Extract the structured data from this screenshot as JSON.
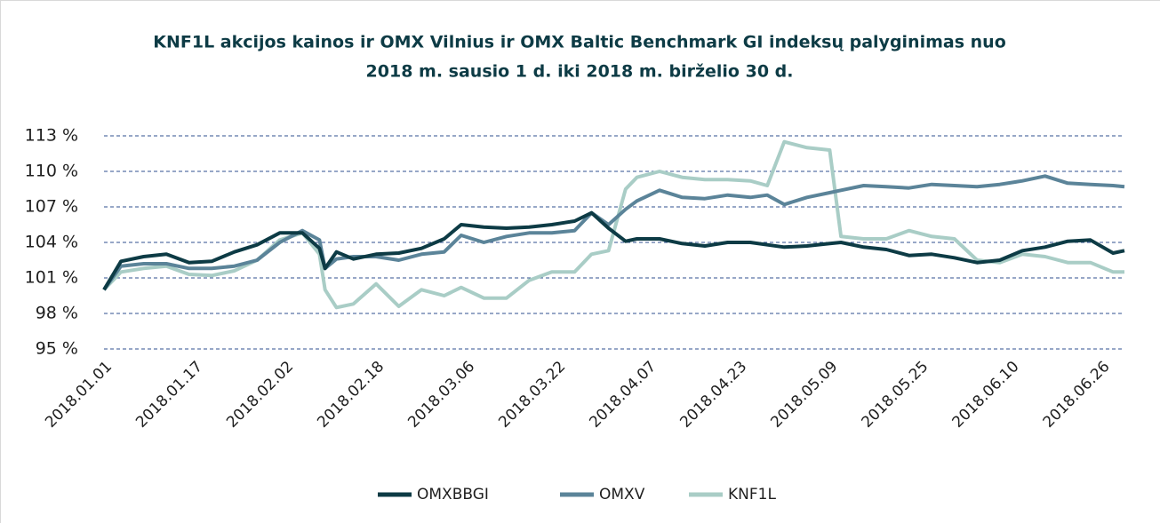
{
  "chart_data": {
    "type": "line",
    "title": [
      "KNF1L akcijos kainos ir OMX Vilnius ir OMX Baltic Benchmark GI indeksų palyginimas nuo",
      "2018 m. sausio 1 d. iki 2018 m. birželio 30 d."
    ],
    "x": [
      "2018.01.01",
      "2018.01.04",
      "2018.01.08",
      "2018.01.12",
      "2018.01.16",
      "2018.01.20",
      "2018.01.24",
      "2018.01.28",
      "2018.02.01",
      "2018.02.05",
      "2018.02.08",
      "2018.02.09",
      "2018.02.11",
      "2018.02.14",
      "2018.02.18",
      "2018.02.22",
      "2018.02.26",
      "2018.03.02",
      "2018.03.05",
      "2018.03.09",
      "2018.03.13",
      "2018.03.17",
      "2018.03.21",
      "2018.03.25",
      "2018.03.28",
      "2018.03.31",
      "2018.04.03",
      "2018.04.05",
      "2018.04.09",
      "2018.04.13",
      "2018.04.17",
      "2018.04.21",
      "2018.04.25",
      "2018.04.28",
      "2018.05.01",
      "2018.05.05",
      "2018.05.09",
      "2018.05.11",
      "2018.05.15",
      "2018.05.19",
      "2018.05.23",
      "2018.05.27",
      "2018.05.31",
      "2018.06.04",
      "2018.06.08",
      "2018.06.12",
      "2018.06.16",
      "2018.06.20",
      "2018.06.24",
      "2018.06.28",
      "2018.06.30"
    ],
    "series": [
      {
        "name": "OMXBBGI",
        "color": "#0d3b45",
        "values": [
          100,
          102.4,
          102.8,
          103,
          102.3,
          102.4,
          103.2,
          103.8,
          104.8,
          104.8,
          103.5,
          101.8,
          103.2,
          102.6,
          103,
          103.1,
          103.5,
          104.3,
          105.5,
          105.3,
          105.2,
          105.3,
          105.5,
          105.8,
          106.5,
          105.2,
          104.1,
          104.3,
          104.3,
          103.9,
          103.7,
          104,
          104,
          103.8,
          103.6,
          103.7,
          103.9,
          104,
          103.6,
          103.4,
          102.9,
          103,
          102.7,
          102.3,
          102.5,
          103.3,
          103.6,
          104.1,
          104.2,
          103.1,
          103.3
        ]
      },
      {
        "name": "OMXV",
        "color": "#5b8499",
        "values": [
          100,
          102,
          102.2,
          102.2,
          101.8,
          101.8,
          102,
          102.5,
          104,
          105,
          104.2,
          101.8,
          102.6,
          102.8,
          102.8,
          102.5,
          103,
          103.2,
          104.6,
          104,
          104.5,
          104.8,
          104.8,
          105,
          106.5,
          105.5,
          106.8,
          107.5,
          108.4,
          107.8,
          107.7,
          108,
          107.8,
          108,
          107.2,
          107.8,
          108.2,
          108.4,
          108.8,
          108.7,
          108.6,
          108.9,
          108.8,
          108.7,
          108.9,
          109.2,
          109.6,
          109,
          108.9,
          108.8,
          108.7
        ]
      },
      {
        "name": "KNF1L",
        "color": "#a9cdc6",
        "values": [
          100,
          101.5,
          101.8,
          102,
          101.3,
          101.2,
          101.6,
          102.5,
          104.2,
          104.8,
          103,
          100,
          98.5,
          98.8,
          100.5,
          98.6,
          100,
          99.5,
          100.2,
          99.3,
          99.3,
          100.8,
          101.5,
          101.5,
          103,
          103.3,
          108.5,
          109.5,
          110,
          109.5,
          109.3,
          109.3,
          109.2,
          108.8,
          112.5,
          112,
          111.8,
          104.5,
          104.3,
          104.3,
          105,
          104.5,
          104.3,
          102.5,
          102.3,
          103,
          102.8,
          102.3,
          102.3,
          101.5,
          101.5
        ]
      }
    ],
    "xlim": [
      "2018.01.01",
      "2018.06.30"
    ],
    "xticks": [
      "2018.01.01",
      "2018.01.17",
      "2018.02.02",
      "2018.02.18",
      "2018.03.06",
      "2018.03.22",
      "2018.04.07",
      "2018.04.23",
      "2018.05.09",
      "2018.05.25",
      "2018.06.10",
      "2018.06.26"
    ],
    "ylim": [
      95,
      113
    ],
    "yticks": [
      {
        "value": 95,
        "label": "95 %"
      },
      {
        "value": 98,
        "label": "98 %"
      },
      {
        "value": 101,
        "label": "101 %"
      },
      {
        "value": 104,
        "label": "104 %"
      },
      {
        "value": 107,
        "label": "107 %"
      },
      {
        "value": 110,
        "label": "110 %"
      },
      {
        "value": 113,
        "label": "113 %"
      }
    ],
    "grid": true,
    "legend": "bottom"
  }
}
